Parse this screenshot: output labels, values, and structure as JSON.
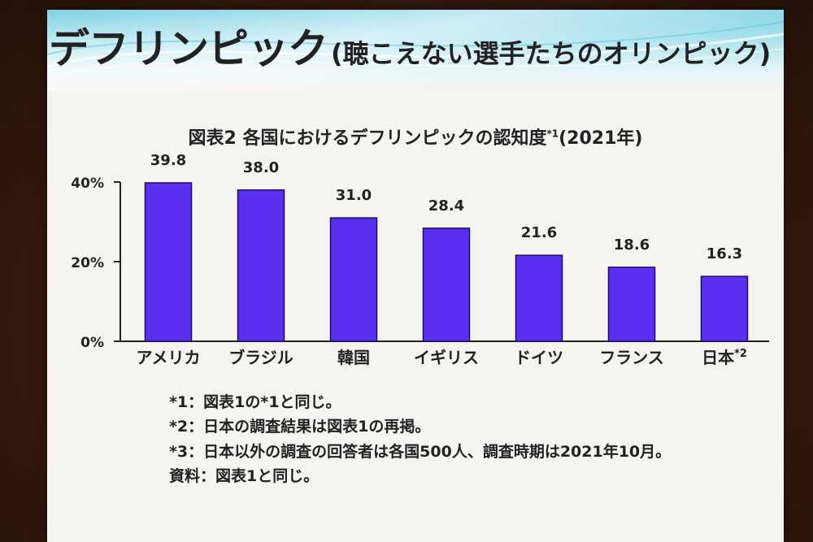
{
  "slide": {
    "title_main": "デフリンピック",
    "title_sub": "(聴こえない選手たちのオリンピック)"
  },
  "chart_data": {
    "type": "bar",
    "title": "図表2  各国におけるデフリンピックの認知度",
    "title_sup": "*1",
    "title_suffix": "(2021年)",
    "categories": [
      "アメリカ",
      "ブラジル",
      "韓国",
      "イギリス",
      "ドイツ",
      "フランス",
      "日本"
    ],
    "category_sups": [
      "",
      "",
      "",
      "",
      "",
      "",
      "*2"
    ],
    "values": [
      39.8,
      38.0,
      31.0,
      28.4,
      21.6,
      18.6,
      16.3
    ],
    "value_labels": [
      "39.8",
      "38.0",
      "31.0",
      "28.4",
      "21.6",
      "18.6",
      "16.3"
    ],
    "ylim": [
      0,
      40
    ],
    "yticks": [
      0,
      20,
      40
    ],
    "ytick_labels": [
      "0%",
      "20%",
      "40%"
    ],
    "xlabel": "",
    "ylabel": "",
    "bar_color": "#5b2ff0",
    "bar_edge_color": "#1a1060"
  },
  "notes": [
    "*1：図表1の*1と同じ。",
    "*2：日本の調査結果は図表1の再掲。",
    "*3：日本以外の調査の回答者は各国500人、調査時期は2021年10月。",
    "資料：図表1と同じ。"
  ]
}
